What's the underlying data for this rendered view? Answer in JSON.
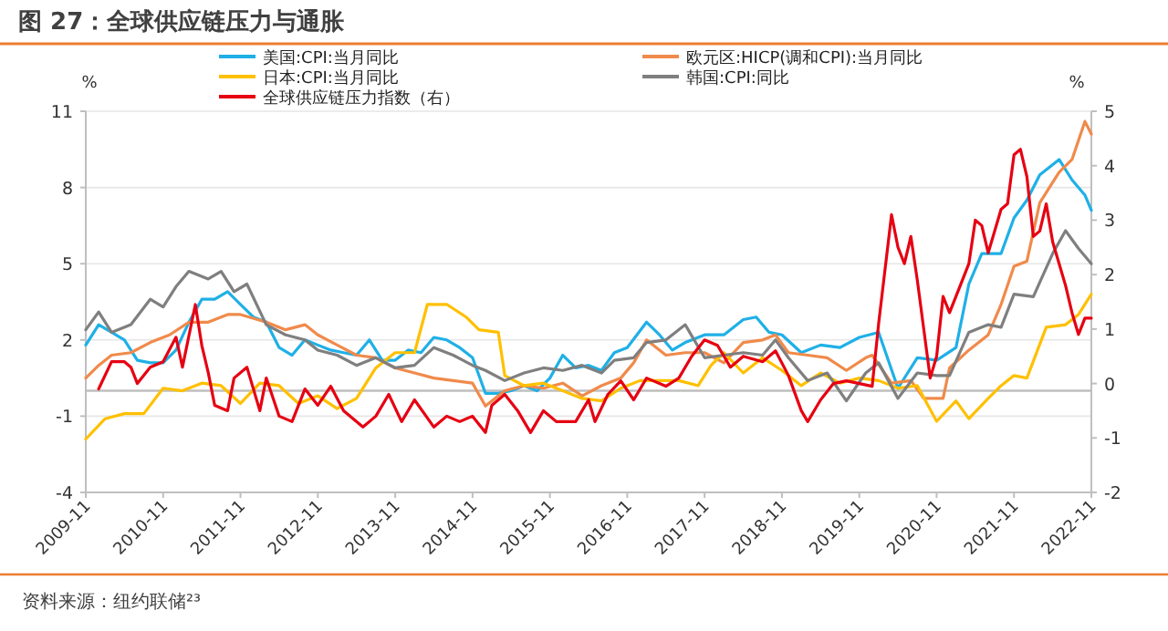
{
  "chart_data": {
    "type": "line",
    "title": "图 27：全球供应链压力与通胀",
    "ylabel": "%",
    "y2label": "%",
    "annotations": [
      "资料来源：纽约联储²³"
    ],
    "xlim": [
      "2009-11",
      "2022-11"
    ],
    "xticks": [
      "2009-11",
      "2010-11",
      "2011-11",
      "2012-11",
      "2013-11",
      "2014-11",
      "2015-11",
      "2016-11",
      "2017-11",
      "2018-11",
      "2019-11",
      "2020-11",
      "2021-11",
      "2022-11"
    ],
    "ylim": [
      -4,
      11
    ],
    "yticks": [
      -4,
      -1,
      2,
      5,
      8,
      11
    ],
    "y2lim": [
      -2,
      5
    ],
    "y2ticks": [
      -2,
      -1,
      0,
      1,
      2,
      3,
      4,
      5
    ],
    "grid": "y",
    "legend": "top",
    "ref_lines": [
      {
        "axis": "y",
        "value": 0,
        "color": "#bfbfbf"
      }
    ],
    "series": [
      {
        "name": "美国:CPI:当月同比",
        "color": "#1fb0e6",
        "x": [
          "2009-11",
          "2010-01",
          "2010-03",
          "2010-05",
          "2010-07",
          "2010-09",
          "2010-11",
          "2011-01",
          "2011-03",
          "2011-05",
          "2011-07",
          "2011-09",
          "2011-11",
          "2012-01",
          "2012-03",
          "2012-05",
          "2012-07",
          "2012-09",
          "2012-11",
          "2013-01",
          "2013-03",
          "2013-05",
          "2013-07",
          "2013-09",
          "2013-11",
          "2014-01",
          "2014-03",
          "2014-05",
          "2014-07",
          "2014-09",
          "2014-11",
          "2015-01",
          "2015-03",
          "2015-05",
          "2015-07",
          "2015-09",
          "2015-11",
          "2016-01",
          "2016-03",
          "2016-05",
          "2016-07",
          "2016-09",
          "2016-11",
          "2017-02",
          "2017-04",
          "2017-06",
          "2017-08",
          "2017-11",
          "2018-02",
          "2018-05",
          "2018-07",
          "2018-09",
          "2018-11",
          "2019-02",
          "2019-05",
          "2019-08",
          "2019-11",
          "2020-02",
          "2020-05",
          "2020-08",
          "2020-11",
          "2021-02",
          "2021-04",
          "2021-06",
          "2021-09",
          "2021-11",
          "2022-01",
          "2022-03",
          "2022-06",
          "2022-08",
          "2022-10",
          "2022-11"
        ],
        "values": [
          1.8,
          2.6,
          2.3,
          2.0,
          1.2,
          1.1,
          1.1,
          1.6,
          2.7,
          3.6,
          3.6,
          3.9,
          3.4,
          2.9,
          2.7,
          1.7,
          1.4,
          2.0,
          1.8,
          1.6,
          1.5,
          1.4,
          2.0,
          1.2,
          1.2,
          1.6,
          1.5,
          2.1,
          2.0,
          1.7,
          1.3,
          -0.1,
          -0.1,
          0.0,
          0.2,
          0.0,
          0.5,
          1.4,
          0.9,
          1.0,
          0.8,
          1.5,
          1.7,
          2.7,
          2.2,
          1.6,
          1.9,
          2.2,
          2.2,
          2.8,
          2.9,
          2.3,
          2.2,
          1.5,
          1.8,
          1.7,
          2.1,
          2.3,
          0.1,
          1.3,
          1.2,
          1.7,
          4.2,
          5.4,
          5.4,
          6.8,
          7.5,
          8.5,
          9.1,
          8.3,
          7.7,
          7.1
        ]
      },
      {
        "name": "欧元区:HICP(调和CPI):当月同比",
        "color": "#f08a4b",
        "x": [
          "2009-11",
          "2010-01",
          "2010-03",
          "2010-06",
          "2010-09",
          "2010-12",
          "2011-03",
          "2011-06",
          "2011-09",
          "2011-11",
          "2012-03",
          "2012-06",
          "2012-09",
          "2012-11",
          "2013-02",
          "2013-05",
          "2013-08",
          "2013-11",
          "2014-02",
          "2014-05",
          "2014-08",
          "2014-11",
          "2015-01",
          "2015-04",
          "2015-07",
          "2015-10",
          "2016-01",
          "2016-04",
          "2016-07",
          "2016-10",
          "2016-12",
          "2017-02",
          "2017-05",
          "2017-08",
          "2017-11",
          "2018-02",
          "2018-05",
          "2018-08",
          "2018-10",
          "2018-12",
          "2019-03",
          "2019-06",
          "2019-09",
          "2019-12",
          "2020-01",
          "2020-04",
          "2020-07",
          "2020-09",
          "2020-12",
          "2021-01",
          "2021-04",
          "2021-07",
          "2021-09",
          "2021-11",
          "2022-01",
          "2022-03",
          "2022-06",
          "2022-08",
          "2022-10",
          "2022-11"
        ],
        "values": [
          0.5,
          1.0,
          1.4,
          1.5,
          1.9,
          2.2,
          2.7,
          2.7,
          3.0,
          3.0,
          2.7,
          2.4,
          2.6,
          2.2,
          1.8,
          1.4,
          1.3,
          0.9,
          0.7,
          0.5,
          0.4,
          0.3,
          -0.6,
          0.0,
          0.2,
          0.1,
          0.3,
          -0.2,
          0.2,
          0.5,
          1.1,
          2.0,
          1.4,
          1.5,
          1.5,
          1.1,
          1.9,
          2.0,
          2.2,
          1.5,
          1.4,
          1.3,
          0.8,
          1.3,
          1.4,
          0.3,
          0.4,
          -0.3,
          -0.3,
          0.9,
          1.6,
          2.2,
          3.4,
          4.9,
          5.1,
          7.4,
          8.6,
          9.1,
          10.6,
          10.1
        ]
      },
      {
        "name": "日本:CPI:当月同比",
        "color": "#ffc000",
        "x": [
          "2009-11",
          "2010-02",
          "2010-05",
          "2010-08",
          "2010-11",
          "2011-02",
          "2011-05",
          "2011-08",
          "2011-11",
          "2012-02",
          "2012-05",
          "2012-08",
          "2012-11",
          "2013-02",
          "2013-05",
          "2013-08",
          "2013-11",
          "2014-02",
          "2014-04",
          "2014-07",
          "2014-10",
          "2014-12",
          "2015-03",
          "2015-04",
          "2015-07",
          "2015-10",
          "2016-01",
          "2016-04",
          "2016-07",
          "2016-10",
          "2017-01",
          "2017-04",
          "2017-07",
          "2017-10",
          "2017-12",
          "2018-02",
          "2018-05",
          "2018-08",
          "2018-11",
          "2019-02",
          "2019-05",
          "2019-08",
          "2019-11",
          "2020-02",
          "2020-05",
          "2020-08",
          "2020-11",
          "2021-02",
          "2021-04",
          "2021-07",
          "2021-09",
          "2021-11",
          "2022-01",
          "2022-04",
          "2022-07",
          "2022-09",
          "2022-11"
        ],
        "values": [
          -1.9,
          -1.1,
          -0.9,
          -0.9,
          0.1,
          0.0,
          0.3,
          0.2,
          -0.5,
          0.3,
          0.2,
          -0.5,
          -0.2,
          -0.7,
          -0.3,
          0.9,
          1.5,
          1.5,
          3.4,
          3.4,
          2.9,
          2.4,
          2.3,
          0.6,
          0.2,
          0.3,
          0.0,
          -0.3,
          -0.4,
          0.1,
          0.4,
          0.4,
          0.4,
          0.2,
          1.0,
          1.5,
          0.7,
          1.3,
          0.8,
          0.2,
          0.7,
          0.3,
          0.5,
          0.4,
          0.1,
          0.2,
          -1.2,
          -0.4,
          -1.1,
          -0.3,
          0.2,
          0.6,
          0.5,
          2.5,
          2.6,
          3.0,
          3.8
        ]
      },
      {
        "name": "韩国:CPI:同比",
        "color": "#7f7f7f",
        "x": [
          "2009-11",
          "2010-01",
          "2010-03",
          "2010-06",
          "2010-09",
          "2010-11",
          "2011-01",
          "2011-03",
          "2011-06",
          "2011-08",
          "2011-10",
          "2011-12",
          "2012-03",
          "2012-06",
          "2012-09",
          "2012-11",
          "2013-02",
          "2013-05",
          "2013-08",
          "2013-11",
          "2014-02",
          "2014-05",
          "2014-08",
          "2014-11",
          "2015-01",
          "2015-04",
          "2015-07",
          "2015-10",
          "2016-01",
          "2016-04",
          "2016-07",
          "2016-09",
          "2016-12",
          "2017-02",
          "2017-05",
          "2017-08",
          "2017-11",
          "2018-02",
          "2018-05",
          "2018-08",
          "2018-10",
          "2018-12",
          "2019-03",
          "2019-06",
          "2019-09",
          "2019-12",
          "2020-02",
          "2020-05",
          "2020-08",
          "2020-11",
          "2021-01",
          "2021-04",
          "2021-07",
          "2021-09",
          "2021-11",
          "2022-02",
          "2022-05",
          "2022-07",
          "2022-09",
          "2022-11"
        ],
        "values": [
          2.4,
          3.1,
          2.3,
          2.6,
          3.6,
          3.3,
          4.1,
          4.7,
          4.4,
          4.7,
          3.9,
          4.2,
          2.6,
          2.2,
          2.0,
          1.6,
          1.4,
          1.0,
          1.3,
          0.9,
          1.0,
          1.7,
          1.4,
          1.0,
          0.8,
          0.4,
          0.7,
          0.9,
          0.8,
          1.0,
          0.7,
          1.2,
          1.3,
          1.9,
          2.0,
          2.6,
          1.3,
          1.4,
          1.5,
          1.4,
          2.0,
          1.3,
          0.4,
          0.7,
          -0.4,
          0.7,
          1.1,
          -0.3,
          0.7,
          0.6,
          0.6,
          2.3,
          2.6,
          2.5,
          3.8,
          3.7,
          5.4,
          6.3,
          5.6,
          5.0
        ]
      },
      {
        "name": "全球供应链压力指数（右）",
        "color": "#e60012",
        "axis": "y2",
        "x": [
          "2010-01",
          "2010-03",
          "2010-05",
          "2010-06",
          "2010-07",
          "2010-09",
          "2010-11",
          "2011-01",
          "2011-02",
          "2011-04",
          "2011-05",
          "2011-06",
          "2011-07",
          "2011-09",
          "2011-10",
          "2011-12",
          "2012-02",
          "2012-03",
          "2012-05",
          "2012-07",
          "2012-09",
          "2012-11",
          "2013-01",
          "2013-03",
          "2013-06",
          "2013-08",
          "2013-10",
          "2013-12",
          "2014-02",
          "2014-05",
          "2014-07",
          "2014-09",
          "2014-11",
          "2015-01",
          "2015-02",
          "2015-04",
          "2015-06",
          "2015-08",
          "2015-10",
          "2015-12",
          "2016-03",
          "2016-05",
          "2016-06",
          "2016-08",
          "2016-10",
          "2016-12",
          "2017-02",
          "2017-05",
          "2017-07",
          "2017-09",
          "2017-11",
          "2018-01",
          "2018-03",
          "2018-05",
          "2018-08",
          "2018-10",
          "2018-12",
          "2019-02",
          "2019-03",
          "2019-05",
          "2019-07",
          "2019-09",
          "2019-11",
          "2020-01",
          "2020-02",
          "2020-04",
          "2020-05",
          "2020-06",
          "2020-07",
          "2020-08",
          "2020-09",
          "2020-10",
          "2020-11",
          "2020-12",
          "2021-01",
          "2021-03",
          "2021-04",
          "2021-05",
          "2021-06",
          "2021-07",
          "2021-09",
          "2021-10",
          "2021-11",
          "2021-12",
          "2022-01",
          "2022-02",
          "2022-03",
          "2022-04",
          "2022-05",
          "2022-07",
          "2022-08",
          "2022-09",
          "2022-10",
          "2022-11"
        ],
        "values": [
          -0.1,
          0.4,
          0.4,
          0.3,
          0.0,
          0.3,
          0.4,
          0.85,
          0.3,
          1.45,
          0.7,
          0.2,
          -0.4,
          -0.5,
          0.1,
          0.3,
          -0.5,
          0.1,
          -0.6,
          -0.7,
          -0.1,
          -0.4,
          -0.05,
          -0.5,
          -0.8,
          -0.6,
          -0.2,
          -0.7,
          -0.3,
          -0.8,
          -0.6,
          -0.7,
          -0.6,
          -0.9,
          -0.4,
          -0.2,
          -0.5,
          -0.9,
          -0.5,
          -0.7,
          -0.7,
          -0.3,
          -0.7,
          -0.2,
          0.05,
          -0.3,
          0.1,
          -0.05,
          0.1,
          0.5,
          0.8,
          0.7,
          0.3,
          0.5,
          0.4,
          0.6,
          0.15,
          -0.5,
          -0.7,
          -0.3,
          0.0,
          0.05,
          0.0,
          -0.05,
          1.1,
          3.1,
          2.5,
          2.2,
          2.7,
          1.9,
          1.0,
          0.1,
          0.5,
          1.6,
          1.3,
          1.9,
          2.2,
          3.0,
          2.9,
          2.4,
          3.2,
          3.3,
          4.2,
          4.3,
          3.8,
          2.7,
          2.8,
          3.3,
          2.6,
          1.8,
          1.3,
          0.9,
          1.2,
          1.2
        ]
      }
    ]
  }
}
